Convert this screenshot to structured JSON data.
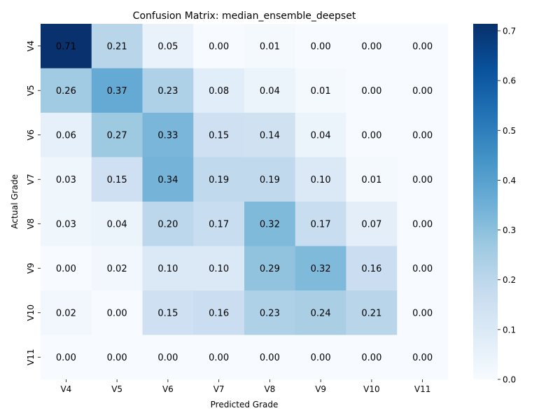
{
  "chart_data": {
    "type": "heatmap",
    "title": "Confusion Matrix: median_ensemble_deepset",
    "xlabel": "Predicted Grade",
    "ylabel": "Actual Grade",
    "x_categories": [
      "V4",
      "V5",
      "V6",
      "V7",
      "V8",
      "V9",
      "V10",
      "V11"
    ],
    "y_categories": [
      "V4",
      "V5",
      "V6",
      "V7",
      "V8",
      "V9",
      "V10",
      "V11"
    ],
    "values": [
      [
        0.71,
        0.21,
        0.05,
        0.0,
        0.01,
        0.0,
        0.0,
        0.0
      ],
      [
        0.26,
        0.37,
        0.23,
        0.08,
        0.04,
        0.01,
        0.0,
        0.0
      ],
      [
        0.06,
        0.27,
        0.33,
        0.15,
        0.14,
        0.04,
        0.0,
        0.0
      ],
      [
        0.03,
        0.15,
        0.34,
        0.19,
        0.19,
        0.1,
        0.01,
        0.0
      ],
      [
        0.03,
        0.04,
        0.2,
        0.17,
        0.32,
        0.17,
        0.07,
        0.0
      ],
      [
        0.0,
        0.02,
        0.1,
        0.1,
        0.29,
        0.32,
        0.16,
        0.0
      ],
      [
        0.02,
        0.0,
        0.15,
        0.16,
        0.23,
        0.24,
        0.21,
        0.0
      ],
      [
        0.0,
        0.0,
        0.0,
        0.0,
        0.0,
        0.0,
        0.0,
        0.0
      ]
    ],
    "colorbar": {
      "colormap": "Blues",
      "vmin": 0.0,
      "vmax": 0.714,
      "ticks": [
        0.0,
        0.1,
        0.2,
        0.3,
        0.4,
        0.5,
        0.6,
        0.7
      ],
      "tick_labels": [
        "0.0",
        "0.1",
        "0.2",
        "0.3",
        "0.4",
        "0.5",
        "0.6",
        "0.7"
      ]
    },
    "annotations": true,
    "grid": false
  }
}
